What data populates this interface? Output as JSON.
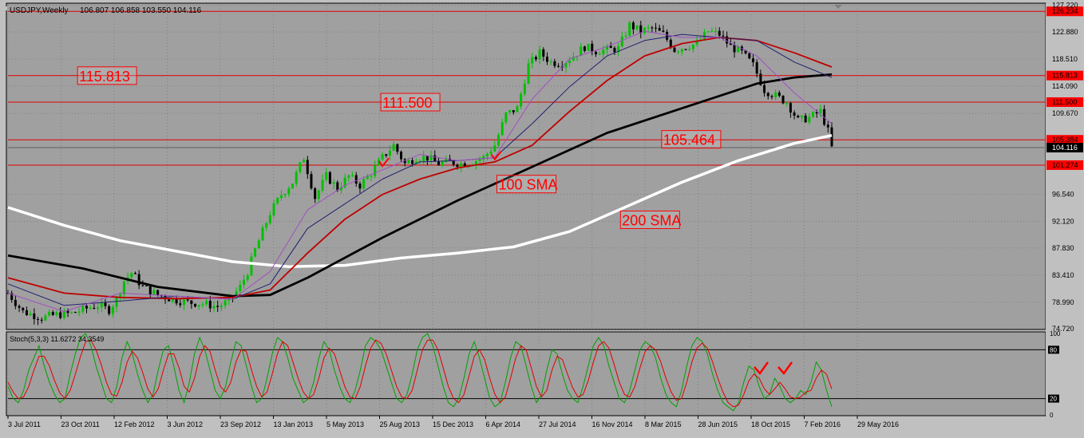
{
  "header": {
    "symbol_timeframe": "USDJPY,Weekly",
    "ohlc": "106.807 106.858 103.550 104.116",
    "stoch_label": "Stoch(5,3,3) 11.6272 34.3549"
  },
  "colors": {
    "background": "#a0a0a0",
    "frame": "#c0c0c0",
    "grid": "#7f7f7f",
    "bull": "#00c000",
    "bear": "#000000",
    "level_line": "#e00000",
    "label_bg": "#ff0000",
    "sma200": "#ffffff",
    "sma100": "#000000",
    "red_ma": "#c00000",
    "blue_ma": "#202070",
    "violet_ma": "#a050c0",
    "stoch_main": "#00a000",
    "stoch_signal": "#e00000"
  },
  "chart_data": [
    {
      "type": "candlestick",
      "title": "USDJPY,Weekly",
      "ylim": [
        74.72,
        127.3
      ],
      "y_ticks": [
        "127.220",
        "122.880",
        "118.510",
        "114.090",
        "109.670",
        "105.384",
        "104.116",
        "101.274",
        "96.540",
        "92.120",
        "87.830",
        "83.410",
        "78.990",
        "74.720"
      ],
      "x_ticks": [
        "3 Jul 2011",
        "23 Oct 2011",
        "12 Feb 2012",
        "3 Jun 2012",
        "23 Sep 2012",
        "13 Jan 2013",
        "5 May 2013",
        "25 Aug 2013",
        "15 Dec 2013",
        "6 Apr 2014",
        "27 Jul 2014",
        "16 Nov 2014",
        "8 Mar 2015",
        "28 Jun 2015",
        "18 Oct 2015",
        "7 Feb 2016",
        "29 May 2016"
      ],
      "price_path": [
        [
          0,
          80.5
        ],
        [
          4,
          77.5
        ],
        [
          9,
          76.5
        ],
        [
          13,
          77.0
        ],
        [
          17,
          77.2
        ],
        [
          21,
          78.0
        ],
        [
          24,
          78.5
        ],
        [
          27,
          77.8
        ],
        [
          29,
          79.5
        ],
        [
          31,
          82.5
        ],
        [
          33,
          83.8
        ],
        [
          36,
          81.5
        ],
        [
          40,
          80.2
        ],
        [
          44,
          79.5
        ],
        [
          48,
          79.0
        ],
        [
          52,
          78.8
        ],
        [
          56,
          78.3
        ],
        [
          59,
          79.2
        ],
        [
          62,
          81.5
        ],
        [
          64,
          84.0
        ],
        [
          66,
          87.5
        ],
        [
          68,
          90.5
        ],
        [
          70,
          93.5
        ],
        [
          73,
          96.5
        ],
        [
          76,
          98.5
        ],
        [
          79,
          102.5
        ],
        [
          82,
          96.0
        ],
        [
          85,
          99.5
        ],
        [
          88,
          97.5
        ],
        [
          91,
          99.5
        ],
        [
          94,
          98.0
        ],
        [
          97,
          100.0
        ],
        [
          100,
          102.5
        ],
        [
          103,
          104.5
        ],
        [
          106,
          101.5
        ],
        [
          109,
          102.5
        ],
        [
          112,
          102.5
        ],
        [
          115,
          101.5
        ],
        [
          118,
          101.8
        ],
        [
          121,
          101.5
        ],
        [
          124,
          101.8
        ],
        [
          127,
          102.5
        ],
        [
          130,
          104.5
        ],
        [
          133,
          109.5
        ],
        [
          136,
          110.5
        ],
        [
          139,
          117.5
        ],
        [
          142,
          119.5
        ],
        [
          145,
          118.0
        ],
        [
          148,
          117.8
        ],
        [
          151,
          119.0
        ],
        [
          154,
          120.5
        ],
        [
          157,
          119.8
        ],
        [
          160,
          120.0
        ],
        [
          163,
          120.2
        ],
        [
          166,
          124.0
        ],
        [
          169,
          123.0
        ],
        [
          172,
          123.5
        ],
        [
          175,
          122.5
        ],
        [
          178,
          120.0
        ],
        [
          181,
          120.5
        ],
        [
          184,
          121.0
        ],
        [
          187,
          123.0
        ],
        [
          190,
          122.5
        ],
        [
          193,
          120.5
        ],
        [
          196,
          119.5
        ],
        [
          199,
          117.5
        ],
        [
          202,
          113.5
        ],
        [
          205,
          112.5
        ],
        [
          208,
          111.5
        ],
        [
          211,
          108.5
        ],
        [
          214,
          109.0
        ],
        [
          217,
          110.0
        ],
        [
          219,
          106.8
        ],
        [
          220,
          104.1
        ]
      ],
      "series": [
        {
          "name": "200 SMA",
          "role": "sma200",
          "points": [
            [
              0,
              94.4
            ],
            [
              15,
              91.5
            ],
            [
              30,
              89.0
            ],
            [
              45,
              87.3
            ],
            [
              60,
              85.6
            ],
            [
              75,
              84.8
            ],
            [
              90,
              85.0
            ],
            [
              105,
              86.2
            ],
            [
              120,
              87.0
            ],
            [
              135,
              88.0
            ],
            [
              150,
              90.5
            ],
            [
              165,
              94.5
            ],
            [
              180,
              98.5
            ],
            [
              195,
              102.0
            ],
            [
              210,
              104.8
            ],
            [
              220,
              106.1
            ]
          ]
        },
        {
          "name": "100 SMA",
          "role": "sma100",
          "points": [
            [
              0,
              86.6
            ],
            [
              20,
              84.5
            ],
            [
              40,
              81.5
            ],
            [
              60,
              80.0
            ],
            [
              70,
              80.2
            ],
            [
              80,
              83.0
            ],
            [
              100,
              89.5
            ],
            [
              120,
              95.5
            ],
            [
              140,
              101.0
            ],
            [
              160,
              106.5
            ],
            [
              180,
              110.5
            ],
            [
              200,
              114.5
            ],
            [
              210,
              115.5
            ],
            [
              220,
              116.0
            ]
          ]
        },
        {
          "name": "",
          "role": "red_ma",
          "points": [
            [
              0,
              83.0
            ],
            [
              15,
              80.5
            ],
            [
              30,
              79.8
            ],
            [
              45,
              79.6
            ],
            [
              60,
              79.8
            ],
            [
              70,
              81.0
            ],
            [
              80,
              87.0
            ],
            [
              90,
              92.5
            ],
            [
              100,
              96.5
            ],
            [
              110,
              99.0
            ],
            [
              120,
              100.8
            ],
            [
              130,
              101.8
            ],
            [
              140,
              104.5
            ],
            [
              150,
              110.0
            ],
            [
              160,
              115.0
            ],
            [
              170,
              119.0
            ],
            [
              180,
              121.0
            ],
            [
              190,
              122.0
            ],
            [
              200,
              121.5
            ],
            [
              210,
              119.5
            ],
            [
              220,
              117.2
            ]
          ]
        },
        {
          "name": "",
          "role": "blue_ma",
          "points": [
            [
              0,
              82.0
            ],
            [
              15,
              78.5
            ],
            [
              30,
              79.2
            ],
            [
              45,
              80.0
            ],
            [
              60,
              79.5
            ],
            [
              70,
              82.0
            ],
            [
              80,
              91.0
            ],
            [
              90,
              95.0
            ],
            [
              100,
              99.0
            ],
            [
              110,
              101.8
            ],
            [
              120,
              102.0
            ],
            [
              130,
              102.5
            ],
            [
              140,
              108.0
            ],
            [
              150,
              114.0
            ],
            [
              160,
              119.0
            ],
            [
              170,
              121.5
            ],
            [
              180,
              122.5
            ],
            [
              190,
              122.0
            ],
            [
              200,
              121.5
            ],
            [
              210,
              118.0
            ],
            [
              220,
              115.5
            ]
          ]
        },
        {
          "name": "",
          "role": "violet_ma",
          "points": [
            [
              0,
              80.5
            ],
            [
              15,
              77.5
            ],
            [
              30,
              80.5
            ],
            [
              45,
              80.0
            ],
            [
              60,
              79.5
            ],
            [
              70,
              84.0
            ],
            [
              80,
              94.0
            ],
            [
              90,
              98.0
            ],
            [
              100,
              100.5
            ],
            [
              110,
              103.0
            ],
            [
              120,
              102.0
            ],
            [
              130,
              102.5
            ],
            [
              140,
              112.0
            ],
            [
              150,
              118.5
            ],
            [
              160,
              120.5
            ],
            [
              170,
              123.0
            ],
            [
              180,
              122.0
            ],
            [
              190,
              122.0
            ],
            [
              200,
              119.0
            ],
            [
              210,
              113.0
            ],
            [
              220,
              108.0
            ]
          ]
        }
      ],
      "levels": [
        {
          "label": "126.234",
          "value": 126.234
        },
        {
          "label": "115.813",
          "value": 115.813
        },
        {
          "label": "111.500",
          "value": 111.5
        },
        {
          "label": "105.384",
          "value": 105.384
        },
        {
          "label": "101.274",
          "value": 101.274
        }
      ],
      "current_price": {
        "label": "104.116",
        "value": 104.116
      },
      "annotations": [
        {
          "text": "115.813",
          "x": 19,
          "y": 115.8
        },
        {
          "text": "111.500",
          "x": 100,
          "y": 111.5
        },
        {
          "text": "105.464",
          "x": 175,
          "y": 105.46
        },
        {
          "text": "100 SMA",
          "x": 131,
          "y": 98.2
        },
        {
          "text": "200 SMA",
          "x": 164,
          "y": 92.4
        }
      ],
      "checkmarks": [
        {
          "x": 100,
          "y": 101.5
        },
        {
          "x": 130,
          "y": 102.6
        }
      ]
    },
    {
      "type": "line",
      "title": "Stoch(5,3,3) 11.6272 34.3549",
      "ylim": [
        0,
        100
      ],
      "y_ticks": [
        "100",
        "80",
        "20",
        "0"
      ],
      "levels": [
        {
          "label": "80",
          "value": 80
        },
        {
          "label": "20",
          "value": 20
        }
      ],
      "series": [
        {
          "name": "",
          "role": "stoch_main",
          "values": [
            35,
            20,
            15,
            30,
            55,
            70,
            85,
            60,
            40,
            25,
            15,
            20,
            50,
            75,
            95,
            100,
            85,
            60,
            40,
            20,
            15,
            35,
            70,
            90,
            75,
            50,
            30,
            15,
            25,
            55,
            80,
            85,
            60,
            30,
            15,
            40,
            75,
            95,
            80,
            55,
            30,
            20,
            35,
            65,
            90,
            85,
            60,
            35,
            15,
            20,
            45,
            75,
            95,
            90,
            70,
            45,
            30,
            15,
            20,
            40,
            70,
            90,
            80,
            55,
            35,
            20,
            15,
            30,
            55,
            85,
            95,
            90,
            80,
            60,
            40,
            20,
            15,
            25,
            50,
            80,
            95,
            100,
            85,
            60,
            35,
            15,
            10,
            20,
            45,
            75,
            90,
            70,
            45,
            20,
            10,
            15,
            40,
            70,
            90,
            85,
            60,
            35,
            15,
            25,
            55,
            80,
            75,
            50,
            30,
            20,
            15,
            35,
            60,
            85,
            95,
            85,
            60,
            40,
            20,
            15,
            30,
            55,
            80,
            90,
            85,
            70,
            45,
            25,
            15,
            10,
            30,
            60,
            85,
            95,
            90,
            75,
            50,
            30,
            15,
            10,
            5,
            15,
            40,
            60,
            55,
            35,
            20,
            25,
            45,
            35,
            20,
            15,
            20,
            30,
            25,
            40,
            65,
            55,
            30,
            10
          ],
          "x_start": 0,
          "x_end": 220
        },
        {
          "name": "",
          "role": "stoch_signal",
          "values": [
            40,
            28,
            20,
            22,
            35,
            55,
            72,
            72,
            60,
            42,
            27,
            20,
            30,
            50,
            72,
            90,
            92,
            80,
            62,
            40,
            25,
            23,
            40,
            65,
            78,
            70,
            52,
            32,
            22,
            32,
            55,
            75,
            75,
            58,
            35,
            28,
            45,
            72,
            85,
            78,
            55,
            35,
            28,
            40,
            65,
            80,
            78,
            55,
            35,
            22,
            28,
            50,
            75,
            90,
            85,
            65,
            45,
            28,
            20,
            25,
            45,
            70,
            82,
            75,
            55,
            35,
            22,
            20,
            35,
            60,
            82,
            92,
            88,
            75,
            55,
            35,
            22,
            20,
            30,
            55,
            80,
            92,
            92,
            80,
            58,
            35,
            20,
            15,
            25,
            48,
            72,
            80,
            68,
            45,
            25,
            15,
            22,
            45,
            70,
            85,
            80,
            58,
            35,
            22,
            30,
            55,
            72,
            68,
            50,
            33,
            22,
            25,
            42,
            65,
            85,
            90,
            82,
            62,
            40,
            25,
            22,
            35,
            58,
            78,
            85,
            80,
            65,
            45,
            28,
            18,
            20,
            40,
            65,
            82,
            88,
            82,
            65,
            45,
            28,
            15,
            10,
            12,
            25,
            42,
            50,
            45,
            32,
            25,
            32,
            40,
            32,
            22,
            20,
            22,
            28,
            30,
            45,
            55,
            50,
            32
          ],
          "x_start": 0,
          "x_end": 220
        }
      ]
    }
  ]
}
